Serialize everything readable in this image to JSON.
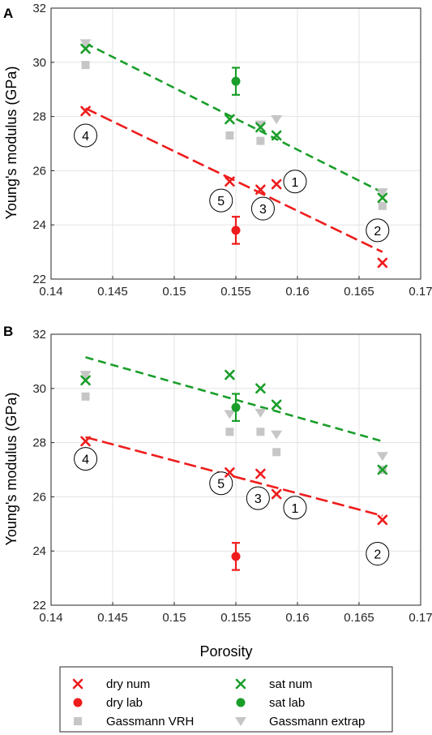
{
  "colors": {
    "dry": "#ee1c1c",
    "sat": "#1a9e2a",
    "gassmann": "#c6c6c6",
    "grid": "#e3e3e3",
    "axis": "#262626"
  },
  "legend": {
    "items": [
      {
        "label": "dry num",
        "marker": "cross",
        "color": "#ee1c1c"
      },
      {
        "label": "sat num",
        "marker": "cross",
        "color": "#1a9e2a"
      },
      {
        "label": "dry lab",
        "marker": "dot",
        "color": "#ee1c1c"
      },
      {
        "label": "sat lab",
        "marker": "dot",
        "color": "#1a9e2a"
      },
      {
        "label": "Gassmann VRH",
        "marker": "square",
        "color": "#c6c6c6"
      },
      {
        "label": "Gassmann extrap",
        "marker": "triangle",
        "color": "#c6c6c6"
      }
    ]
  },
  "chart_data": [
    {
      "panel_label": "A",
      "type": "scatter",
      "xlabel": "",
      "ylabel": "Young's modulus (GPa)",
      "xlim": [
        0.14,
        0.17
      ],
      "ylim": [
        22,
        32
      ],
      "xticks": [
        "0.14",
        "0.145",
        "0.15",
        "0.155",
        "0.16",
        "0.165",
        "0.17"
      ],
      "yticks": [
        "22",
        "24",
        "26",
        "28",
        "30",
        "32"
      ],
      "grid": true,
      "series": [
        {
          "name": "dry num",
          "marker": "cross",
          "color": "#ee1c1c",
          "x": [
            0.1428,
            0.1545,
            0.157,
            0.1583,
            0.1669
          ],
          "y": [
            28.2,
            25.6,
            25.3,
            25.5,
            22.6
          ]
        },
        {
          "name": "sat num",
          "marker": "cross",
          "color": "#1a9e2a",
          "x": [
            0.1428,
            0.1545,
            0.157,
            0.1583,
            0.1669
          ],
          "y": [
            30.5,
            27.9,
            27.6,
            27.3,
            25.0
          ]
        },
        {
          "name": "dry lab",
          "marker": "dot",
          "color": "#ee1c1c",
          "x": [
            0.155
          ],
          "y": [
            23.8
          ],
          "err": [
            0.5
          ]
        },
        {
          "name": "sat lab",
          "marker": "dot",
          "color": "#1a9e2a",
          "x": [
            0.155
          ],
          "y": [
            29.3
          ],
          "err": [
            0.5
          ]
        },
        {
          "name": "Gassmann VRH",
          "marker": "square",
          "color": "#c6c6c6",
          "x": [
            0.1428,
            0.1545,
            0.157,
            0.1669
          ],
          "y": [
            29.9,
            27.3,
            27.1,
            24.7
          ]
        },
        {
          "name": "Gassmann extrap",
          "marker": "triangle",
          "color": "#c6c6c6",
          "x": [
            0.1428,
            0.157,
            0.1583,
            0.1669
          ],
          "y": [
            30.7,
            27.7,
            27.9,
            25.2
          ]
        }
      ],
      "fits": [
        {
          "color": "#ee1c1c",
          "style": "long-dash",
          "x": [
            0.1428,
            0.1669
          ],
          "y": [
            28.3,
            23.0
          ]
        },
        {
          "color": "#1a9e2a",
          "style": "dash",
          "x": [
            0.1428,
            0.1669
          ],
          "y": [
            30.7,
            25.2
          ]
        }
      ],
      "annotations": [
        {
          "text": "4",
          "x": 0.1428,
          "y": 27.3
        },
        {
          "text": "5",
          "x": 0.1538,
          "y": 24.9
        },
        {
          "text": "3",
          "x": 0.1572,
          "y": 24.6
        },
        {
          "text": "1",
          "x": 0.1598,
          "y": 25.6
        },
        {
          "text": "2",
          "x": 0.1665,
          "y": 23.8
        }
      ]
    },
    {
      "panel_label": "B",
      "type": "scatter",
      "xlabel": "Porosity",
      "ylabel": "Young's modulus (GPa)",
      "xlim": [
        0.14,
        0.17
      ],
      "ylim": [
        22,
        32
      ],
      "xticks": [
        "0.14",
        "0.145",
        "0.15",
        "0.155",
        "0.16",
        "0.165",
        "0.17"
      ],
      "yticks": [
        "22",
        "24",
        "26",
        "28",
        "30",
        "32"
      ],
      "grid": true,
      "series": [
        {
          "name": "dry num",
          "marker": "cross",
          "color": "#ee1c1c",
          "x": [
            0.1428,
            0.1545,
            0.157,
            0.1583,
            0.1669
          ],
          "y": [
            28.05,
            26.9,
            26.85,
            26.1,
            25.15
          ]
        },
        {
          "name": "sat num",
          "marker": "cross",
          "color": "#1a9e2a",
          "x": [
            0.1428,
            0.1545,
            0.157,
            0.1583,
            0.1669
          ],
          "y": [
            30.3,
            30.5,
            30.0,
            29.4,
            27.0
          ]
        },
        {
          "name": "dry lab",
          "marker": "dot",
          "color": "#ee1c1c",
          "x": [
            0.155
          ],
          "y": [
            23.8
          ],
          "err": [
            0.5
          ]
        },
        {
          "name": "sat lab",
          "marker": "dot",
          "color": "#1a9e2a",
          "x": [
            0.155
          ],
          "y": [
            29.3
          ],
          "err": [
            0.5
          ]
        },
        {
          "name": "Gassmann VRH",
          "marker": "square",
          "color": "#c6c6c6",
          "x": [
            0.1428,
            0.1545,
            0.157,
            0.1583,
            0.1669
          ],
          "y": [
            29.7,
            28.4,
            28.4,
            27.65,
            27.0
          ]
        },
        {
          "name": "Gassmann extrap",
          "marker": "triangle",
          "color": "#c6c6c6",
          "x": [
            0.1428,
            0.1545,
            0.157,
            0.1583,
            0.1669
          ],
          "y": [
            30.5,
            29.05,
            29.1,
            28.3,
            27.5
          ]
        }
      ],
      "fits": [
        {
          "color": "#ee1c1c",
          "style": "long-dash",
          "x": [
            0.1428,
            0.1669
          ],
          "y": [
            28.2,
            25.3
          ]
        },
        {
          "color": "#1a9e2a",
          "style": "dash",
          "x": [
            0.1428,
            0.1669
          ],
          "y": [
            31.15,
            28.05
          ]
        }
      ],
      "annotations": [
        {
          "text": "4",
          "x": 0.1428,
          "y": 27.4
        },
        {
          "text": "5",
          "x": 0.1538,
          "y": 26.5
        },
        {
          "text": "3",
          "x": 0.1568,
          "y": 25.95
        },
        {
          "text": "1",
          "x": 0.1598,
          "y": 25.6
        },
        {
          "text": "2",
          "x": 0.1665,
          "y": 23.9
        }
      ]
    }
  ]
}
